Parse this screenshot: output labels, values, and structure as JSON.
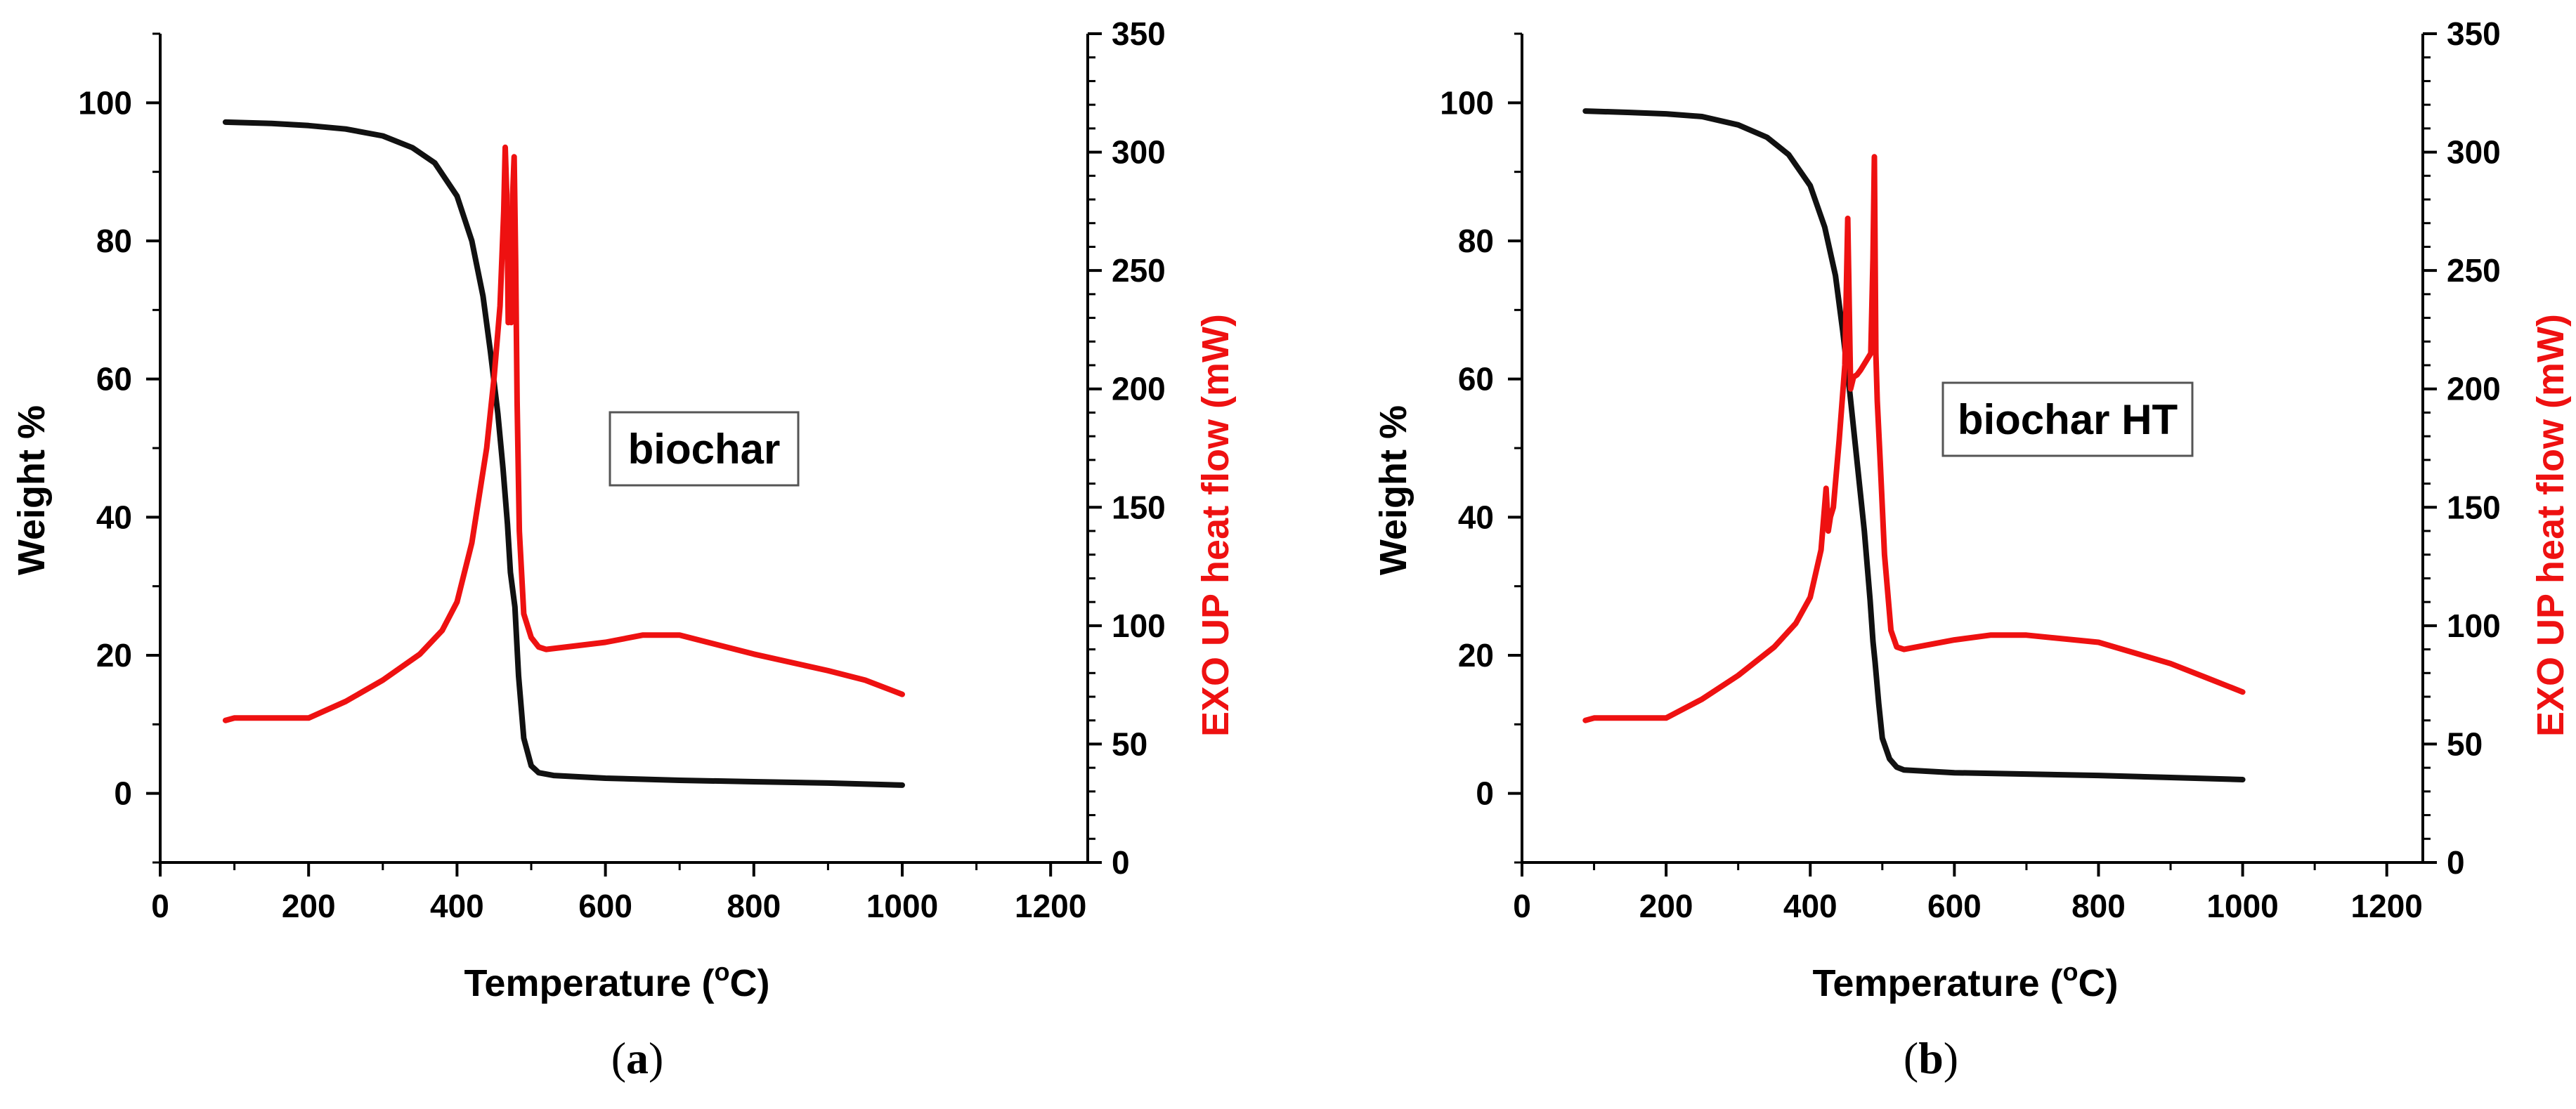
{
  "chart_data": [
    {
      "type": "line",
      "panel_label_open": "(",
      "panel_label": "a",
      "panel_label_close": ")",
      "annotation": "biochar",
      "xlabel_pre": "Temperature (",
      "xlabel_sup": "o",
      "xlabel_post": "C)",
      "ylabel": "Weight %",
      "y2label": "EXO  UP heat flow (mW)",
      "xlim": [
        0,
        1250
      ],
      "ylim": [
        -10,
        110
      ],
      "y2lim": [
        0,
        350
      ],
      "xticks": [
        0,
        200,
        400,
        600,
        800,
        1000,
        1200
      ],
      "yticks": [
        0,
        20,
        40,
        60,
        80,
        100
      ],
      "y2ticks": [
        0,
        50,
        100,
        150,
        200,
        250,
        300,
        350
      ],
      "colors": {
        "weight": "#111111",
        "heat": "#ee1111"
      },
      "series": [
        {
          "name": "Weight %",
          "axis": "left",
          "x": [
            88,
            150,
            200,
            250,
            300,
            340,
            370,
            400,
            420,
            435,
            445,
            455,
            462,
            468,
            472,
            478,
            483,
            490,
            500,
            510,
            530,
            600,
            700,
            800,
            900,
            1000
          ],
          "y": [
            97.2,
            97,
            96.7,
            96.2,
            95.2,
            93.5,
            91.3,
            86.5,
            80,
            72,
            64,
            55,
            47,
            39,
            32,
            27,
            17,
            8,
            4,
            3,
            2.6,
            2.2,
            1.9,
            1.7,
            1.5,
            1.2
          ]
        },
        {
          "name": "EXO UP heat flow (mW)",
          "axis": "right",
          "x": [
            88,
            100,
            150,
            200,
            250,
            300,
            350,
            380,
            400,
            420,
            440,
            450,
            458,
            463,
            465,
            467,
            469,
            471,
            473,
            475,
            477,
            479,
            481,
            484,
            490,
            500,
            510,
            520,
            600,
            650,
            700,
            800,
            900,
            950,
            1000
          ],
          "y": [
            60,
            61,
            61,
            61,
            68,
            77,
            88,
            98,
            110,
            135,
            175,
            205,
            235,
            275,
            302,
            282,
            228,
            258,
            228,
            282,
            298,
            255,
            195,
            140,
            105,
            95,
            91,
            90,
            93,
            96,
            96,
            88,
            81,
            77,
            71
          ]
        }
      ]
    },
    {
      "type": "line",
      "panel_label_open": "(",
      "panel_label": "b",
      "panel_label_close": ")",
      "annotation": "biochar HT",
      "xlabel_pre": "Temperature (",
      "xlabel_sup": "o",
      "xlabel_post": "C)",
      "ylabel": "Weight %",
      "y2label": "EXO  UP heat flow (mW)",
      "xlim": [
        0,
        1250
      ],
      "ylim": [
        -10,
        110
      ],
      "y2lim": [
        0,
        350
      ],
      "xticks": [
        0,
        200,
        400,
        600,
        800,
        1000,
        1200
      ],
      "yticks": [
        0,
        20,
        40,
        60,
        80,
        100
      ],
      "y2ticks": [
        0,
        50,
        100,
        150,
        200,
        250,
        300,
        350
      ],
      "colors": {
        "weight": "#111111",
        "heat": "#ee1111"
      },
      "series": [
        {
          "name": "Weight %",
          "axis": "left",
          "x": [
            88,
            150,
            200,
            250,
            300,
            340,
            370,
            400,
            420,
            435,
            445,
            455,
            465,
            475,
            483,
            487,
            490,
            495,
            500,
            510,
            520,
            530,
            600,
            700,
            800,
            900,
            1000
          ],
          "y": [
            98.8,
            98.6,
            98.4,
            98,
            96.8,
            95,
            92.5,
            88,
            82,
            75,
            67,
            58,
            48,
            38,
            28,
            22,
            19,
            13,
            8,
            5,
            3.8,
            3.4,
            3,
            2.8,
            2.6,
            2.3,
            2
          ],
          "note": "sharp drop between 450 and 510"
        },
        {
          "name": "EXO UP heat flow (mW)",
          "axis": "right",
          "x": [
            88,
            100,
            150,
            200,
            250,
            300,
            350,
            380,
            400,
            415,
            422,
            425,
            428,
            432,
            440,
            448,
            452,
            456,
            460,
            465,
            470,
            478,
            484,
            487,
            489,
            491,
            493,
            497,
            503,
            512,
            520,
            530,
            600,
            650,
            700,
            800,
            900,
            950,
            1000
          ],
          "y": [
            60,
            61,
            61,
            61,
            69,
            79,
            91,
            101,
            112,
            132,
            158,
            140,
            146,
            150,
            178,
            210,
            272,
            200,
            205,
            206,
            208,
            212,
            215,
            255,
            298,
            215,
            195,
            170,
            130,
            98,
            91,
            90,
            94,
            96,
            96,
            93,
            84,
            78,
            72
          ]
        }
      ]
    }
  ]
}
